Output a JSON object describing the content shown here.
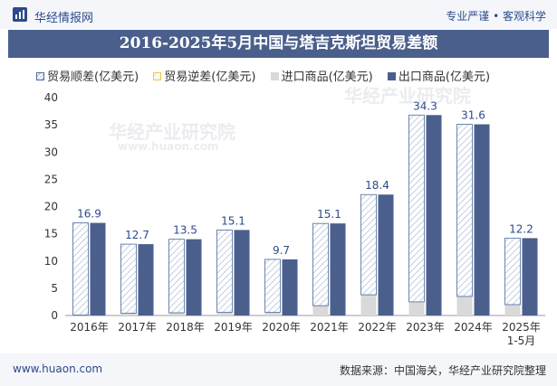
{
  "header": {
    "brand": "华经情报网",
    "tagline": "专业严谨 • 客观科学"
  },
  "title": "2016-2025年5月中国与塔吉克斯坦贸易差额",
  "footer": {
    "site": "www.huaon.com",
    "source": "数据来源：中国海关，华经产业研究院整理"
  },
  "watermark": {
    "text": "华经产业研究院",
    "url": "www.huaon.com"
  },
  "colors": {
    "title_bg": "#4a5f8c",
    "surplus": "#4a6a9a",
    "deficit": "#e8c84a",
    "import": "#d9d9d9",
    "export": "#4a5f8c",
    "value_label": "#2d4a8a"
  },
  "chart_data": {
    "type": "bar",
    "categories": [
      "2016年",
      "2017年",
      "2018年",
      "2019年",
      "2020年",
      "2021年",
      "2022年",
      "2023年",
      "2024年",
      "2025年 1-5月"
    ],
    "series": [
      {
        "name": "贸易顺差(亿美元)",
        "values": [
          16.9,
          12.7,
          13.5,
          15.1,
          9.7,
          15.1,
          18.4,
          34.3,
          31.6,
          12.2
        ]
      },
      {
        "name": "贸易逆差(亿美元)",
        "values": [
          0,
          0,
          0,
          0,
          0,
          0,
          0,
          0,
          0,
          0
        ]
      },
      {
        "name": "进口商品(亿美元)",
        "values": [
          0.1,
          0.4,
          0.5,
          0.6,
          0.6,
          1.8,
          3.8,
          2.5,
          3.5,
          2.0
        ]
      },
      {
        "name": "出口商品(亿美元)",
        "values": [
          17.0,
          13.1,
          14.0,
          15.7,
          10.3,
          16.9,
          22.2,
          36.8,
          35.1,
          14.2
        ]
      }
    ],
    "data_labels": [
      "16.9",
      "12.7",
      "13.5",
      "15.1",
      "9.7",
      "15.1",
      "18.4",
      "34.3",
      "31.6",
      "12.2"
    ],
    "yticks": [
      0,
      5,
      10,
      15,
      20,
      25,
      30,
      35,
      40
    ],
    "ylim": [
      0,
      40
    ],
    "legend_position": "top",
    "grid": false
  }
}
